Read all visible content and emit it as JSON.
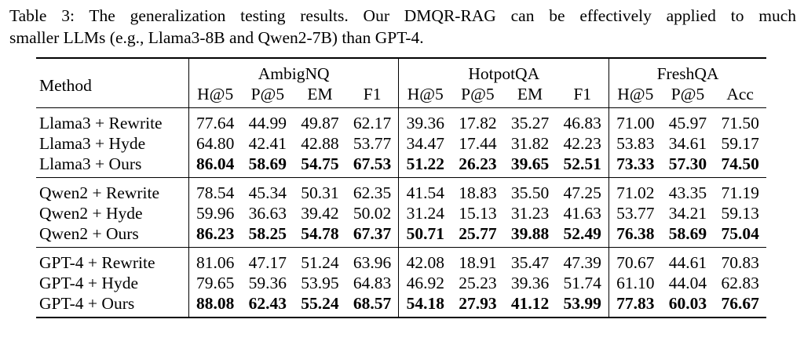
{
  "caption": {
    "line1": "Table 3: The generalization testing results. Our DMQR-RAG can be effectively applied to much",
    "line2": "smaller LLMs (e.g., Llama3-8B and Qwen2-7B) than GPT-4."
  },
  "header": {
    "method": "Method",
    "groups": [
      "AmbigNQ",
      "HotpotQA",
      "FreshQA"
    ],
    "ambig_cols": [
      "H@5",
      "P@5",
      "EM",
      "F1"
    ],
    "hotpot_cols": [
      "H@5",
      "P@5",
      "EM",
      "F1"
    ],
    "fresh_cols": [
      "H@5",
      "P@5",
      "Acc"
    ]
  },
  "sections": [
    {
      "rows": [
        {
          "method": "Llama3 + Rewrite",
          "values": [
            "77.64",
            "44.99",
            "49.87",
            "62.17",
            "39.36",
            "17.82",
            "35.27",
            "46.83",
            "71.00",
            "45.97",
            "71.50"
          ]
        },
        {
          "method": "Llama3 + Hyde",
          "values": [
            "64.80",
            "42.41",
            "42.88",
            "53.77",
            "34.47",
            "17.44",
            "31.82",
            "42.23",
            "53.83",
            "34.61",
            "59.17"
          ]
        },
        {
          "method": "Llama3 + Ours",
          "values": [
            "86.04",
            "58.69",
            "54.75",
            "67.53",
            "51.22",
            "26.23",
            "39.65",
            "52.51",
            "73.33",
            "57.30",
            "74.50"
          ]
        }
      ]
    },
    {
      "rows": [
        {
          "method": "Qwen2 + Rewrite",
          "values": [
            "78.54",
            "45.34",
            "50.31",
            "62.35",
            "41.54",
            "18.83",
            "35.50",
            "47.25",
            "71.02",
            "43.35",
            "71.19"
          ]
        },
        {
          "method": "Qwen2 + Hyde",
          "values": [
            "59.96",
            "36.63",
            "39.42",
            "50.02",
            "31.24",
            "15.13",
            "31.23",
            "41.63",
            "53.77",
            "34.21",
            "59.13"
          ]
        },
        {
          "method": "Qwen2 + Ours",
          "values": [
            "86.23",
            "58.25",
            "54.78",
            "67.37",
            "50.71",
            "25.77",
            "39.88",
            "52.49",
            "76.38",
            "58.69",
            "75.04"
          ]
        }
      ]
    },
    {
      "rows": [
        {
          "method": "GPT-4 + Rewrite",
          "values": [
            "81.06",
            "47.17",
            "51.24",
            "63.96",
            "42.08",
            "18.91",
            "35.47",
            "47.39",
            "70.67",
            "44.61",
            "70.83"
          ]
        },
        {
          "method": "GPT-4 + Hyde",
          "values": [
            "79.65",
            "59.36",
            "53.95",
            "64.83",
            "46.92",
            "25.23",
            "39.36",
            "51.74",
            "61.10",
            "44.04",
            "62.83"
          ]
        },
        {
          "method": "GPT-4 + Ours",
          "values": [
            "88.08",
            "62.43",
            "55.24",
            "68.57",
            "54.18",
            "27.93",
            "41.12",
            "53.99",
            "77.83",
            "60.03",
            "76.67"
          ]
        }
      ]
    }
  ]
}
